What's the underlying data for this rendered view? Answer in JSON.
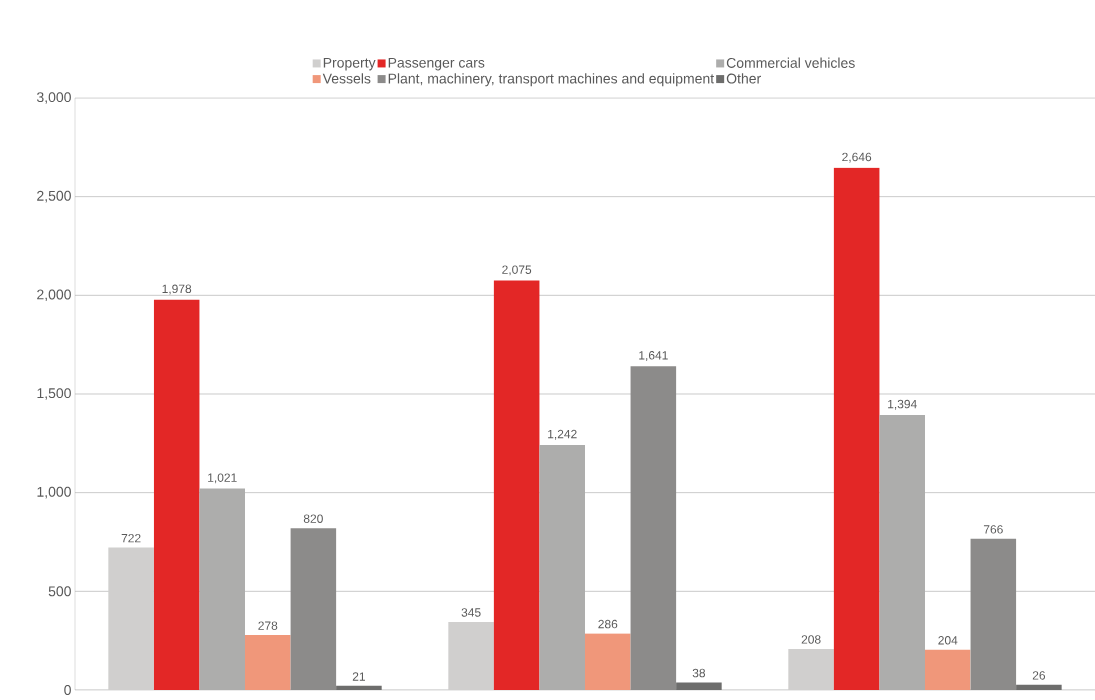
{
  "chart_data": {
    "type": "bar",
    "categories": [
      null,
      null,
      null
    ],
    "series": [
      {
        "name": "Property",
        "color": "#d0cfce",
        "values": [
          722,
          345,
          208
        ],
        "value_labels": [
          "722",
          "345",
          "208"
        ]
      },
      {
        "name": "Passenger cars",
        "color": "#e32726",
        "values": [
          1978,
          2075,
          2646
        ],
        "value_labels": [
          "1,978",
          "2,075",
          "2,646"
        ]
      },
      {
        "name": "Commercial vehicles",
        "color": "#adadac",
        "values": [
          1021,
          1242,
          1394
        ],
        "value_labels": [
          "1,021",
          "1,242",
          "1,394"
        ]
      },
      {
        "name": "Vessels",
        "color": "#f0977a",
        "values": [
          278,
          286,
          204
        ],
        "value_labels": [
          "278",
          "286",
          "204"
        ]
      },
      {
        "name": "Plant, machinery, transport machines and equipment",
        "color": "#8c8b8a",
        "values": [
          820,
          1641,
          766
        ],
        "value_labels": [
          "820",
          "1,641",
          "766"
        ]
      },
      {
        "name": "Other",
        "color": "#6d6d6c",
        "values": [
          21,
          38,
          26
        ],
        "value_labels": [
          "21",
          "38",
          "26"
        ]
      }
    ],
    "ylim": [
      0,
      3000
    ],
    "yticks": [
      {
        "value": 0,
        "label": "0"
      },
      {
        "value": 500,
        "label": "500"
      },
      {
        "value": 1000,
        "label": "1,000"
      },
      {
        "value": 1500,
        "label": "1,500"
      },
      {
        "value": 2000,
        "label": "2,000"
      },
      {
        "value": 2500,
        "label": "2,500"
      },
      {
        "value": 3000,
        "label": "3,000"
      }
    ],
    "grid": "y",
    "legend": "top"
  }
}
